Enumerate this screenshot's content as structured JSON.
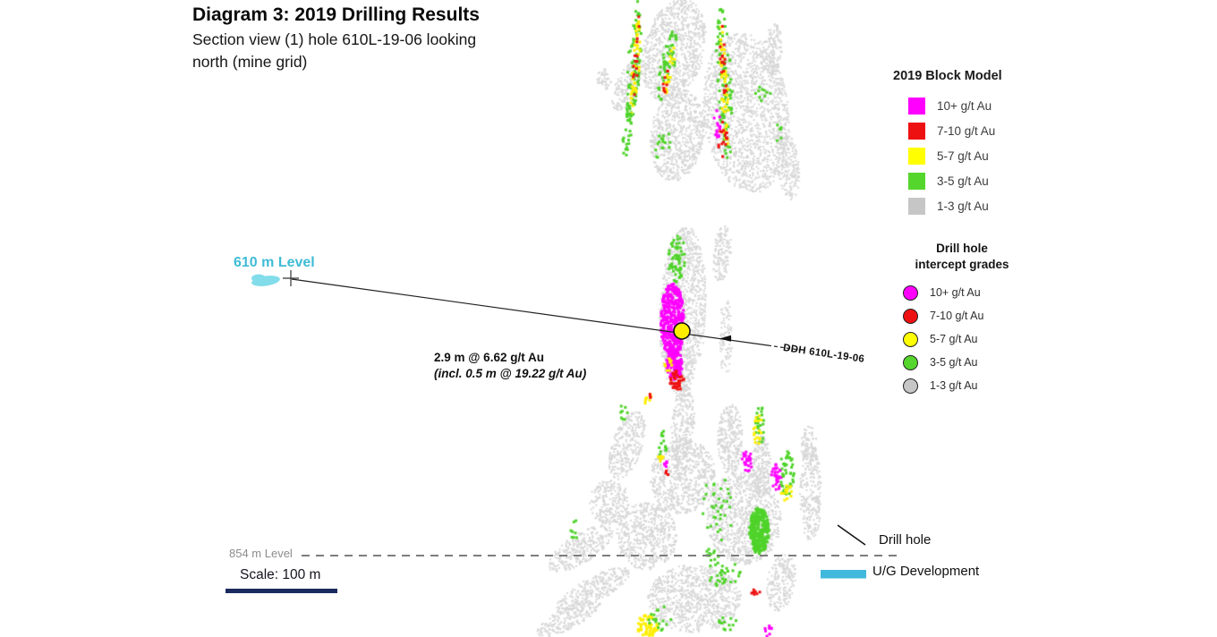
{
  "header": {
    "title": "Diagram 3: 2019 Drilling Results",
    "subtitle1": "Section view (1) hole 610L-19-06 looking",
    "subtitle2": "north (mine grid)"
  },
  "block_model_legend": {
    "title": "2019 Block Model",
    "items": [
      {
        "label": "10+ g/t Au",
        "color": "#ff00ff"
      },
      {
        "label": "7-10 g/t Au",
        "color": "#ee1111"
      },
      {
        "label": "5-7 g/t Au",
        "color": "#ffff00"
      },
      {
        "label": "3-5 g/t Au",
        "color": "#55d62c"
      },
      {
        "label": "1-3 g/t Au",
        "color": "#c6c6c6"
      }
    ]
  },
  "intercept_legend": {
    "title1": "Drill hole",
    "title2": "intercept grades",
    "items": [
      {
        "label": "10+ g/t Au",
        "color": "#ff00ff"
      },
      {
        "label": "7-10 g/t Au",
        "color": "#ee1111"
      },
      {
        "label": "5-7 g/t Au",
        "color": "#ffff00"
      },
      {
        "label": "3-5 g/t Au",
        "color": "#55d62c"
      },
      {
        "label": "1-3 g/t Au",
        "color": "#c6c6c6"
      }
    ]
  },
  "labels": {
    "level_610": "610 m Level",
    "level_854": "854 m Level",
    "scale": "Scale: 100 m",
    "intercept1": "2.9 m @ 6.62 g/t Au",
    "intercept2": "(incl. 0.5 m @ 19.22 g/t Au)",
    "ddh": "DDH 610L-19-06",
    "drill_hole": "Drill hole",
    "ug_development": "U/G Development"
  },
  "colors": {
    "level_610_text": "#3fbcd6",
    "ug_bar": "#41b9dc",
    "ug_blob": "#82dcea",
    "scale_bar": "#1b2a5e",
    "dashed_level_line": "#7d7d7d",
    "intercept_marker_fill": "#ffee00",
    "palette": {
      "gray": "#d7d7d7",
      "green": "#4fd32a",
      "yellow": "#ffee00",
      "red": "#ee1111",
      "magenta": "#ff00ff"
    }
  },
  "block_model": {
    "clusters": [
      [
        752,
        55,
        34,
        58,
        15,
        "gray",
        900,
        2
      ],
      [
        756,
        150,
        30,
        52,
        8,
        "gray",
        700,
        2
      ],
      [
        833,
        125,
        48,
        90,
        -6,
        "gray",
        1600,
        2
      ],
      [
        862,
        55,
        11,
        30,
        5,
        "gray",
        160,
        2
      ],
      [
        700,
        95,
        13,
        30,
        25,
        "gray",
        180,
        2
      ],
      [
        674,
        88,
        8,
        12,
        0,
        "gray",
        50,
        2
      ],
      [
        880,
        185,
        12,
        38,
        -5,
        "gray",
        200,
        2
      ],
      [
        762,
        345,
        26,
        95,
        2,
        "gray",
        1100,
        2
      ],
      [
        806,
        282,
        10,
        32,
        5,
        "gray",
        150,
        2
      ],
      [
        762,
        480,
        13,
        52,
        3,
        "gray",
        280,
        2
      ],
      [
        810,
        375,
        7,
        45,
        0,
        "gray",
        90,
        2
      ],
      [
        700,
        497,
        17,
        40,
        18,
        "gray",
        300,
        2
      ],
      [
        762,
        532,
        36,
        42,
        10,
        "gray",
        650,
        2
      ],
      [
        830,
        578,
        42,
        52,
        -5,
        "gray",
        950,
        2
      ],
      [
        722,
        598,
        34,
        38,
        0,
        "gray",
        560,
        2
      ],
      [
        648,
        612,
        42,
        16,
        -32,
        "gray",
        300,
        2
      ],
      [
        662,
        658,
        46,
        14,
        -28,
        "gray",
        280,
        2
      ],
      [
        634,
        690,
        40,
        12,
        -28,
        "gray",
        210,
        2
      ],
      [
        905,
        550,
        12,
        55,
        0,
        "gray",
        280,
        2
      ],
      [
        872,
        650,
        16,
        32,
        10,
        "gray",
        220,
        2
      ],
      [
        775,
        668,
        52,
        38,
        0,
        "gray",
        850,
        2
      ],
      [
        680,
        560,
        22,
        26,
        0,
        "gray",
        240,
        2
      ],
      [
        903,
        497,
        9,
        22,
        0,
        "gray",
        90,
        2
      ],
      [
        815,
        490,
        14,
        40,
        0,
        "gray",
        300,
        2
      ],
      [
        850,
        520,
        10,
        35,
        0,
        "gray",
        220,
        2
      ],
      [
        707,
        70,
        7,
        72,
        4,
        "green",
        90,
        3
      ],
      [
        709,
        72,
        4,
        58,
        4,
        "yellow",
        40,
        3
      ],
      [
        709,
        65,
        3,
        48,
        4,
        "red",
        14,
        3
      ],
      [
        745,
        72,
        8,
        42,
        12,
        "green",
        60,
        3
      ],
      [
        746,
        78,
        4,
        32,
        12,
        "yellow",
        20,
        3
      ],
      [
        744,
        85,
        3,
        20,
        12,
        "red",
        8,
        3
      ],
      [
        700,
        150,
        5,
        25,
        8,
        "green",
        18,
        3
      ],
      [
        808,
        90,
        8,
        88,
        -3,
        "green",
        90,
        3
      ],
      [
        808,
        95,
        4,
        70,
        -3,
        "yellow",
        45,
        3
      ],
      [
        806,
        60,
        3,
        50,
        -3,
        "red",
        16,
        3
      ],
      [
        800,
        140,
        4,
        18,
        0,
        "magenta",
        14,
        3
      ],
      [
        806,
        152,
        5,
        22,
        0,
        "red",
        16,
        3
      ],
      [
        850,
        103,
        10,
        10,
        0,
        "green",
        10,
        3
      ],
      [
        869,
        148,
        4,
        12,
        0,
        "green",
        6,
        3
      ],
      [
        740,
        160,
        9,
        22,
        10,
        "green",
        16,
        3
      ],
      [
        755,
        288,
        10,
        26,
        5,
        "green",
        60,
        3
      ],
      [
        750,
        358,
        13,
        44,
        0,
        "magenta",
        420,
        3
      ],
      [
        752,
        406,
        9,
        17,
        0,
        "magenta",
        120,
        3
      ],
      [
        755,
        424,
        8,
        11,
        0,
        "red",
        40,
        3
      ],
      [
        746,
        408,
        5,
        9,
        0,
        "yellow",
        10,
        3
      ],
      [
        739,
        498,
        5,
        20,
        0,
        "green",
        14,
        3
      ],
      [
        737,
        508,
        3,
        8,
        0,
        "yellow",
        7,
        3
      ],
      [
        742,
        518,
        3,
        6,
        0,
        "magenta",
        6,
        3
      ],
      [
        744,
        527,
        2,
        4,
        0,
        "red",
        4,
        3
      ],
      [
        695,
        458,
        5,
        12,
        0,
        "green",
        8,
        3
      ],
      [
        722,
        444,
        5,
        6,
        0,
        "yellow",
        8,
        3
      ],
      [
        725,
        441,
        2,
        3,
        0,
        "red",
        3,
        3
      ],
      [
        848,
        470,
        6,
        24,
        0,
        "green",
        25,
        3
      ],
      [
        845,
        478,
        5,
        20,
        0,
        "yellow",
        18,
        3
      ],
      [
        834,
        514,
        7,
        12,
        0,
        "magenta",
        30,
        3
      ],
      [
        866,
        532,
        7,
        15,
        0,
        "magenta",
        30,
        3
      ],
      [
        878,
        527,
        8,
        25,
        0,
        "green",
        45,
        3
      ],
      [
        878,
        550,
        7,
        9,
        0,
        "yellow",
        14,
        3
      ],
      [
        847,
        592,
        11,
        26,
        0,
        "green",
        320,
        3
      ],
      [
        800,
        565,
        18,
        40,
        0,
        "green",
        35,
        3
      ],
      [
        806,
        640,
        22,
        14,
        0,
        "green",
        30,
        3
      ],
      [
        843,
        661,
        5,
        4,
        0,
        "red",
        8,
        3
      ],
      [
        722,
        698,
        12,
        12,
        0,
        "yellow",
        60,
        3
      ],
      [
        737,
        690,
        14,
        14,
        0,
        "green",
        18,
        3
      ],
      [
        812,
        694,
        10,
        12,
        0,
        "green",
        12,
        3
      ],
      [
        857,
        703,
        4,
        7,
        0,
        "magenta",
        8,
        3
      ],
      [
        641,
        590,
        7,
        14,
        0,
        "green",
        8,
        3
      ],
      [
        793,
        618,
        10,
        8,
        0,
        "green",
        12,
        3
      ]
    ]
  }
}
